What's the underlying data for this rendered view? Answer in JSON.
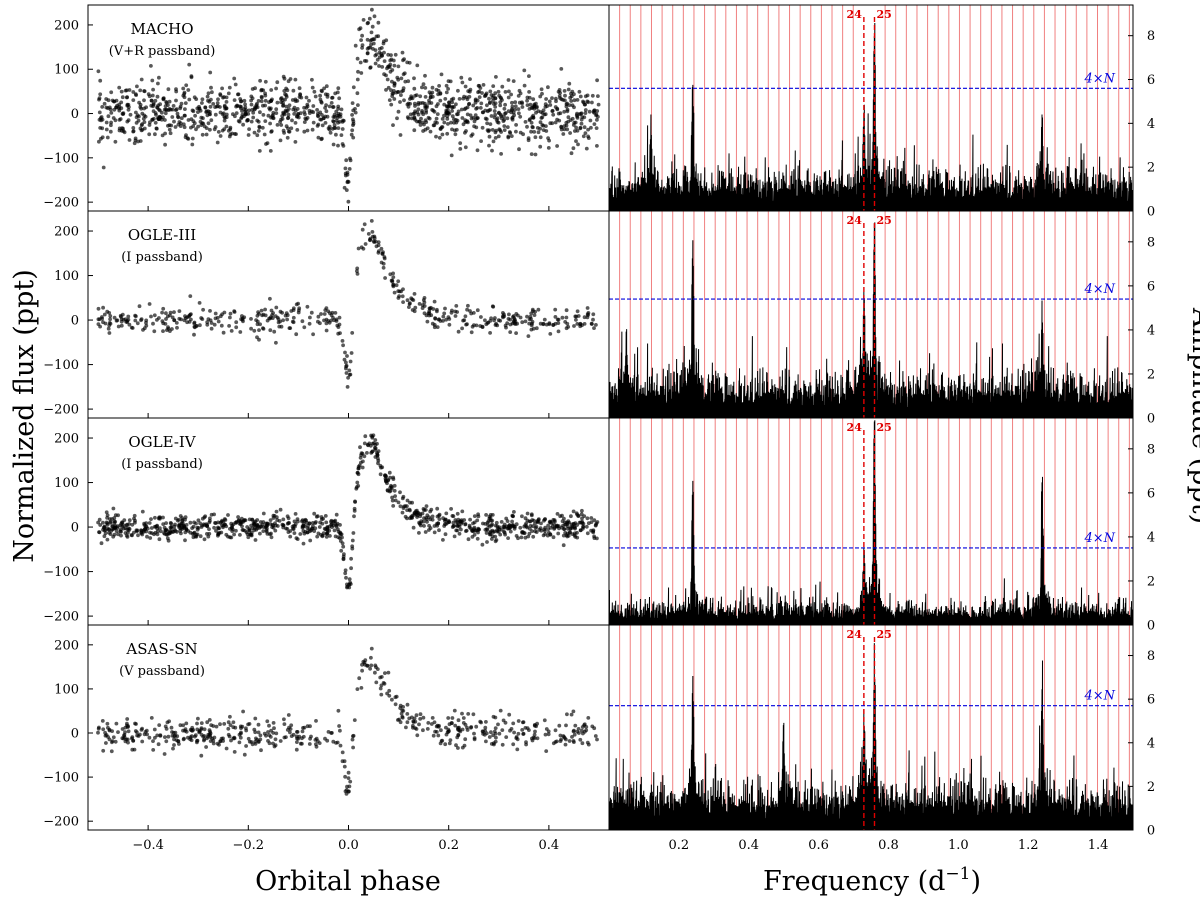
{
  "figure": {
    "left_ylabel": "Normalized flux (ppt)",
    "right_ylabel": "Amplitude (ppt)",
    "left_xlabel": "Orbital phase",
    "right_xlabel_main": "Frequency (d",
    "right_xlabel_sup": "−1",
    "right_xlabel_end": ")"
  },
  "colors": {
    "points": "#000000",
    "spectrum": "#000000",
    "harmonics": "#f08080",
    "marked_harmonics": "#e00000",
    "noise_line": "#0000dd"
  },
  "chart_data": [
    {
      "type": "scatter",
      "panel": "MACHO",
      "annotation": [
        "MACHO",
        "(V+R passband)"
      ],
      "x_label": "Orbital phase",
      "xlim": [
        -0.52,
        0.52
      ],
      "ylim": [
        -220,
        245
      ],
      "xticks": [
        -0.4,
        -0.2,
        0.0,
        0.2,
        0.4
      ],
      "yticks": [
        -200,
        -100,
        0,
        100,
        200
      ],
      "profile": {
        "dip_phase": 0.0,
        "dip_min": -125,
        "peak_phase": 0.05,
        "peak_max": 175,
        "scatter": 35
      },
      "n_points": 1300
    },
    {
      "type": "scatter",
      "panel": "OGLE-III",
      "annotation": [
        "OGLE-III",
        "(I passband)"
      ],
      "xlim": [
        -0.52,
        0.52
      ],
      "ylim": [
        -220,
        245
      ],
      "xticks": [
        -0.4,
        -0.2,
        0.0,
        0.2,
        0.4
      ],
      "yticks": [
        -200,
        -100,
        0,
        100,
        200
      ],
      "profile": {
        "dip_phase": 0.0,
        "dip_min": -125,
        "peak_phase": 0.05,
        "peak_max": 200,
        "scatter": 15
      },
      "n_points": 500
    },
    {
      "type": "scatter",
      "panel": "OGLE-IV",
      "annotation": [
        "OGLE-IV",
        "(I passband)"
      ],
      "xlim": [
        -0.52,
        0.52
      ],
      "ylim": [
        -220,
        245
      ],
      "xticks": [
        -0.4,
        -0.2,
        0.0,
        0.2,
        0.4
      ],
      "yticks": [
        -200,
        -100,
        0,
        100,
        200
      ],
      "profile": {
        "dip_phase": 0.0,
        "dip_min": -130,
        "peak_phase": 0.05,
        "peak_max": 195,
        "scatter": 14
      },
      "n_points": 1000
    },
    {
      "type": "scatter",
      "panel": "ASAS-SN",
      "annotation": [
        "ASAS-SN",
        "(V passband)"
      ],
      "xlim": [
        -0.52,
        0.52
      ],
      "ylim": [
        -220,
        245
      ],
      "xticks": [
        -0.4,
        -0.2,
        0.0,
        0.2,
        0.4
      ],
      "xticklabels": [
        "−0.4",
        "−0.2",
        "0.0",
        "0.2",
        "0.4"
      ],
      "yticks": [
        -200,
        -100,
        0,
        100,
        200
      ],
      "profile": {
        "dip_phase": 0.0,
        "dip_min": -120,
        "peak_phase": 0.05,
        "peak_max": 160,
        "scatter": 18
      },
      "n_points": 550
    },
    {
      "type": "line",
      "panel": "MACHO periodogram",
      "xlim": [
        0.0,
        1.5
      ],
      "ylim": [
        0,
        9.4
      ],
      "xticks": [
        0.2,
        0.4,
        0.6,
        0.8,
        1.0,
        1.2,
        1.4
      ],
      "yticks": [
        0,
        2,
        4,
        6,
        8
      ],
      "noise_label": "4×N",
      "noise_level": 5.6,
      "harmonic_spacing": 0.0304,
      "marked_harmonics": [
        {
          "n": 24,
          "label": "24"
        },
        {
          "n": 25,
          "label": "25"
        }
      ],
      "base_level": 1.5,
      "peaks": [
        {
          "f": 0.76,
          "a": 7.9
        },
        {
          "f": 0.24,
          "a": 5.4
        },
        {
          "f": 0.73,
          "a": 4.3
        },
        {
          "f": 1.24,
          "a": 4.0
        },
        {
          "f": 0.12,
          "a": 3.7
        }
      ]
    },
    {
      "type": "line",
      "panel": "OGLE-III periodogram",
      "xlim": [
        0.0,
        1.5
      ],
      "ylim": [
        0,
        9.4
      ],
      "xticks": [
        0.2,
        0.4,
        0.6,
        0.8,
        1.0,
        1.2,
        1.4
      ],
      "yticks": [
        0,
        2,
        4,
        6,
        8
      ],
      "noise_label": "4×N",
      "noise_level": 5.4,
      "harmonic_spacing": 0.0304,
      "marked_harmonics": [
        {
          "n": 24,
          "label": "24"
        },
        {
          "n": 25,
          "label": "25"
        }
      ],
      "base_level": 1.6,
      "peaks": [
        {
          "f": 0.76,
          "a": 8.8
        },
        {
          "f": 0.24,
          "a": 7.6
        },
        {
          "f": 0.73,
          "a": 5.0
        },
        {
          "f": 1.24,
          "a": 4.6
        },
        {
          "f": 0.05,
          "a": 4.0
        }
      ]
    },
    {
      "type": "line",
      "panel": "OGLE-IV periodogram",
      "xlim": [
        0.0,
        1.5
      ],
      "ylim": [
        0,
        9.4
      ],
      "xticks": [
        0.2,
        0.4,
        0.6,
        0.8,
        1.0,
        1.2,
        1.4
      ],
      "yticks": [
        0,
        2,
        4,
        6,
        8
      ],
      "noise_label": "4×N",
      "noise_level": 3.5,
      "harmonic_spacing": 0.0304,
      "marked_harmonics": [
        {
          "n": 24,
          "label": "24"
        },
        {
          "n": 25,
          "label": "25"
        }
      ],
      "base_level": 0.8,
      "peaks": [
        {
          "f": 0.76,
          "a": 9.1
        },
        {
          "f": 1.24,
          "a": 6.5
        },
        {
          "f": 0.24,
          "a": 6.1
        },
        {
          "f": 0.73,
          "a": 3.5
        }
      ]
    },
    {
      "type": "line",
      "panel": "ASAS-SN periodogram",
      "xlim": [
        0.0,
        1.5
      ],
      "ylim": [
        0,
        9.4
      ],
      "xticks": [
        0.2,
        0.4,
        0.6,
        0.8,
        1.0,
        1.2,
        1.4
      ],
      "xticklabels": [
        "0.2",
        "0.4",
        "0.6",
        "0.8",
        "1.0",
        "1.2",
        "1.4"
      ],
      "yticks": [
        0,
        2,
        4,
        6,
        8
      ],
      "noise_label": "4×N",
      "noise_level": 5.7,
      "harmonic_spacing": 0.0304,
      "marked_harmonics": [
        {
          "n": 24,
          "label": "24"
        },
        {
          "n": 25,
          "label": "25"
        }
      ],
      "base_level": 1.7,
      "peaks": [
        {
          "f": 0.76,
          "a": 7.7
        },
        {
          "f": 0.24,
          "a": 6.6
        },
        {
          "f": 1.24,
          "a": 6.7
        },
        {
          "f": 0.73,
          "a": 5.3
        },
        {
          "f": 0.5,
          "a": 4.6
        }
      ]
    }
  ]
}
